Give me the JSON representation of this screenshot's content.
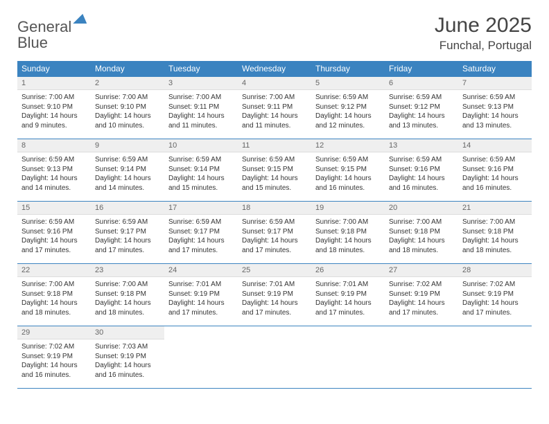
{
  "logo": {
    "word1": "General",
    "word2": "Blue"
  },
  "title": "June 2025",
  "location": "Funchal, Portugal",
  "colors": {
    "accent": "#3b83c0",
    "header_text": "#ffffff",
    "daynum_bg": "#efefef",
    "daynum_text": "#666666",
    "body_text": "#333333",
    "page_bg": "#ffffff",
    "cell_border": "#3b83c0"
  },
  "weekdays": [
    "Sunday",
    "Monday",
    "Tuesday",
    "Wednesday",
    "Thursday",
    "Friday",
    "Saturday"
  ],
  "weeks": [
    [
      {
        "day": "1",
        "sunrise": "Sunrise: 7:00 AM",
        "sunset": "Sunset: 9:10 PM",
        "daylight": "Daylight: 14 hours and 9 minutes."
      },
      {
        "day": "2",
        "sunrise": "Sunrise: 7:00 AM",
        "sunset": "Sunset: 9:10 PM",
        "daylight": "Daylight: 14 hours and 10 minutes."
      },
      {
        "day": "3",
        "sunrise": "Sunrise: 7:00 AM",
        "sunset": "Sunset: 9:11 PM",
        "daylight": "Daylight: 14 hours and 11 minutes."
      },
      {
        "day": "4",
        "sunrise": "Sunrise: 7:00 AM",
        "sunset": "Sunset: 9:11 PM",
        "daylight": "Daylight: 14 hours and 11 minutes."
      },
      {
        "day": "5",
        "sunrise": "Sunrise: 6:59 AM",
        "sunset": "Sunset: 9:12 PM",
        "daylight": "Daylight: 14 hours and 12 minutes."
      },
      {
        "day": "6",
        "sunrise": "Sunrise: 6:59 AM",
        "sunset": "Sunset: 9:12 PM",
        "daylight": "Daylight: 14 hours and 13 minutes."
      },
      {
        "day": "7",
        "sunrise": "Sunrise: 6:59 AM",
        "sunset": "Sunset: 9:13 PM",
        "daylight": "Daylight: 14 hours and 13 minutes."
      }
    ],
    [
      {
        "day": "8",
        "sunrise": "Sunrise: 6:59 AM",
        "sunset": "Sunset: 9:13 PM",
        "daylight": "Daylight: 14 hours and 14 minutes."
      },
      {
        "day": "9",
        "sunrise": "Sunrise: 6:59 AM",
        "sunset": "Sunset: 9:14 PM",
        "daylight": "Daylight: 14 hours and 14 minutes."
      },
      {
        "day": "10",
        "sunrise": "Sunrise: 6:59 AM",
        "sunset": "Sunset: 9:14 PM",
        "daylight": "Daylight: 14 hours and 15 minutes."
      },
      {
        "day": "11",
        "sunrise": "Sunrise: 6:59 AM",
        "sunset": "Sunset: 9:15 PM",
        "daylight": "Daylight: 14 hours and 15 minutes."
      },
      {
        "day": "12",
        "sunrise": "Sunrise: 6:59 AM",
        "sunset": "Sunset: 9:15 PM",
        "daylight": "Daylight: 14 hours and 16 minutes."
      },
      {
        "day": "13",
        "sunrise": "Sunrise: 6:59 AM",
        "sunset": "Sunset: 9:16 PM",
        "daylight": "Daylight: 14 hours and 16 minutes."
      },
      {
        "day": "14",
        "sunrise": "Sunrise: 6:59 AM",
        "sunset": "Sunset: 9:16 PM",
        "daylight": "Daylight: 14 hours and 16 minutes."
      }
    ],
    [
      {
        "day": "15",
        "sunrise": "Sunrise: 6:59 AM",
        "sunset": "Sunset: 9:16 PM",
        "daylight": "Daylight: 14 hours and 17 minutes."
      },
      {
        "day": "16",
        "sunrise": "Sunrise: 6:59 AM",
        "sunset": "Sunset: 9:17 PM",
        "daylight": "Daylight: 14 hours and 17 minutes."
      },
      {
        "day": "17",
        "sunrise": "Sunrise: 6:59 AM",
        "sunset": "Sunset: 9:17 PM",
        "daylight": "Daylight: 14 hours and 17 minutes."
      },
      {
        "day": "18",
        "sunrise": "Sunrise: 6:59 AM",
        "sunset": "Sunset: 9:17 PM",
        "daylight": "Daylight: 14 hours and 17 minutes."
      },
      {
        "day": "19",
        "sunrise": "Sunrise: 7:00 AM",
        "sunset": "Sunset: 9:18 PM",
        "daylight": "Daylight: 14 hours and 18 minutes."
      },
      {
        "day": "20",
        "sunrise": "Sunrise: 7:00 AM",
        "sunset": "Sunset: 9:18 PM",
        "daylight": "Daylight: 14 hours and 18 minutes."
      },
      {
        "day": "21",
        "sunrise": "Sunrise: 7:00 AM",
        "sunset": "Sunset: 9:18 PM",
        "daylight": "Daylight: 14 hours and 18 minutes."
      }
    ],
    [
      {
        "day": "22",
        "sunrise": "Sunrise: 7:00 AM",
        "sunset": "Sunset: 9:18 PM",
        "daylight": "Daylight: 14 hours and 18 minutes."
      },
      {
        "day": "23",
        "sunrise": "Sunrise: 7:00 AM",
        "sunset": "Sunset: 9:18 PM",
        "daylight": "Daylight: 14 hours and 18 minutes."
      },
      {
        "day": "24",
        "sunrise": "Sunrise: 7:01 AM",
        "sunset": "Sunset: 9:19 PM",
        "daylight": "Daylight: 14 hours and 17 minutes."
      },
      {
        "day": "25",
        "sunrise": "Sunrise: 7:01 AM",
        "sunset": "Sunset: 9:19 PM",
        "daylight": "Daylight: 14 hours and 17 minutes."
      },
      {
        "day": "26",
        "sunrise": "Sunrise: 7:01 AM",
        "sunset": "Sunset: 9:19 PM",
        "daylight": "Daylight: 14 hours and 17 minutes."
      },
      {
        "day": "27",
        "sunrise": "Sunrise: 7:02 AM",
        "sunset": "Sunset: 9:19 PM",
        "daylight": "Daylight: 14 hours and 17 minutes."
      },
      {
        "day": "28",
        "sunrise": "Sunrise: 7:02 AM",
        "sunset": "Sunset: 9:19 PM",
        "daylight": "Daylight: 14 hours and 17 minutes."
      }
    ],
    [
      {
        "day": "29",
        "sunrise": "Sunrise: 7:02 AM",
        "sunset": "Sunset: 9:19 PM",
        "daylight": "Daylight: 14 hours and 16 minutes."
      },
      {
        "day": "30",
        "sunrise": "Sunrise: 7:03 AM",
        "sunset": "Sunset: 9:19 PM",
        "daylight": "Daylight: 14 hours and 16 minutes."
      },
      null,
      null,
      null,
      null,
      null
    ]
  ]
}
